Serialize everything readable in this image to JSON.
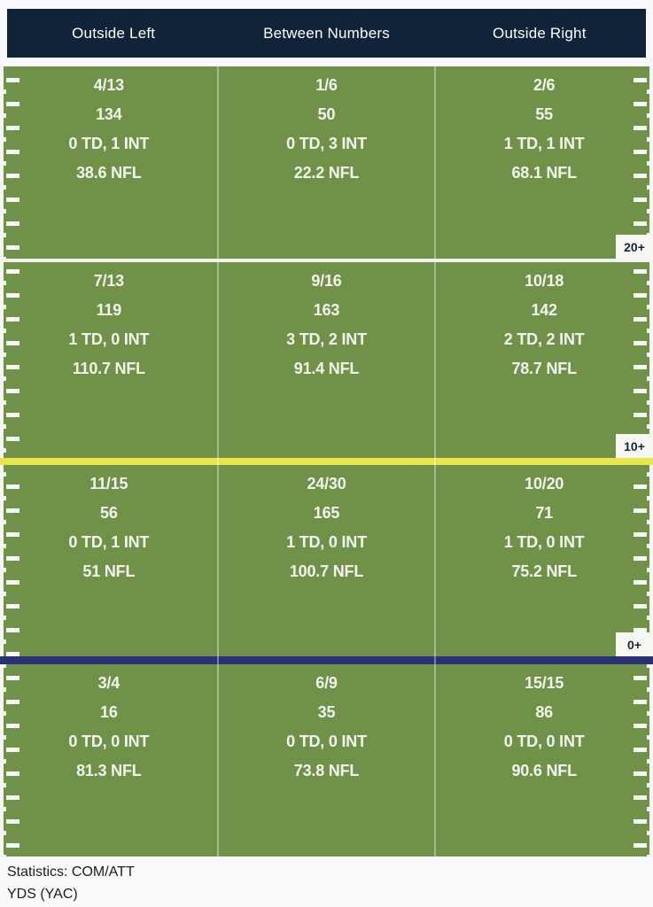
{
  "colors": {
    "header_bg": "#112338",
    "field_green": "#6f9148",
    "hash_white": "#f5f7f2",
    "divider_white": "#f2f4ed",
    "divider_yellow": "#e9e54d",
    "divider_blue": "#293174",
    "stat_text": "#f3f5ee",
    "badge_bg": "#f6f7f3",
    "badge_text": "#16273d"
  },
  "chart_data": {
    "type": "table",
    "layout": "football-field passing zones, 3 columns x 4 depth rows",
    "columns": [
      "Outside Left",
      "Between Numbers",
      "Outside Right"
    ],
    "legend": {
      "line1": "Statistics: COM/ATT",
      "line2": "YDS (YAC)"
    },
    "zones": [
      {
        "label": "20+",
        "cells": [
          {
            "com_att": "4/13",
            "yds": "134",
            "td_int": "0 TD, 1 INT",
            "rating": "38.6 NFL"
          },
          {
            "com_att": "1/6",
            "yds": "50",
            "td_int": "0 TD, 3 INT",
            "rating": "22.2 NFL"
          },
          {
            "com_att": "2/6",
            "yds": "55",
            "td_int": "1 TD, 1 INT",
            "rating": "68.1 NFL"
          }
        ]
      },
      {
        "label": "10+",
        "cells": [
          {
            "com_att": "7/13",
            "yds": "119",
            "td_int": "1 TD, 0 INT",
            "rating": "110.7 NFL"
          },
          {
            "com_att": "9/16",
            "yds": "163",
            "td_int": "3 TD, 2 INT",
            "rating": "91.4 NFL"
          },
          {
            "com_att": "10/18",
            "yds": "142",
            "td_int": "2 TD, 2 INT",
            "rating": "78.7 NFL"
          }
        ]
      },
      {
        "label": "0+",
        "cells": [
          {
            "com_att": "11/15",
            "yds": "56",
            "td_int": "0 TD, 1 INT",
            "rating": "51 NFL"
          },
          {
            "com_att": "24/30",
            "yds": "165",
            "td_int": "1 TD, 0 INT",
            "rating": "100.7 NFL"
          },
          {
            "com_att": "10/20",
            "yds": "71",
            "td_int": "1 TD, 0 INT",
            "rating": "75.2 NFL"
          }
        ]
      },
      {
        "label": "",
        "cells": [
          {
            "com_att": "3/4",
            "yds": "16",
            "td_int": "0 TD, 0 INT",
            "rating": "81.3 NFL"
          },
          {
            "com_att": "6/9",
            "yds": "35",
            "td_int": "0 TD, 0 INT",
            "rating": "73.8 NFL"
          },
          {
            "com_att": "15/15",
            "yds": "86",
            "td_int": "0 TD, 0 INT",
            "rating": "90.6 NFL"
          }
        ]
      }
    ]
  }
}
